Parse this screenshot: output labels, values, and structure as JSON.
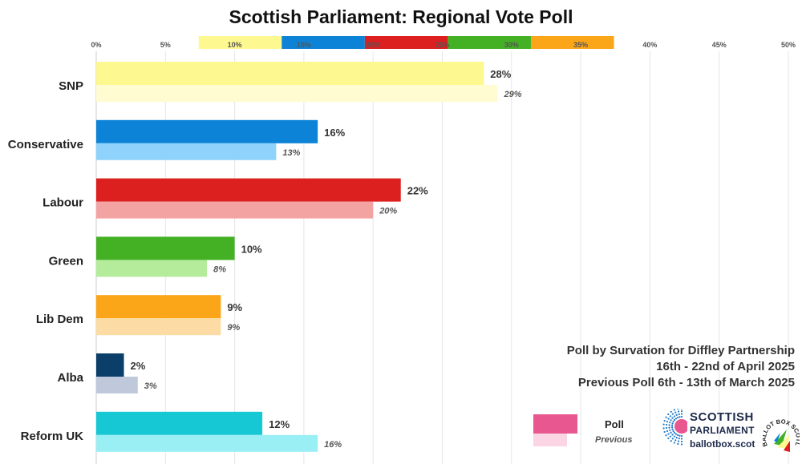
{
  "title": "Scottish Parliament: Regional Vote Poll",
  "source": {
    "line1": "Poll by Survation for Diffley Partnership",
    "line2": "16th - 22nd of April 2025",
    "line3": "Previous Poll 6th - 13th of March 2025"
  },
  "legend": {
    "poll_label": "Poll",
    "previous_label": "Previous",
    "poll_color": "#e8578f",
    "previous_color": "#fbd5e4"
  },
  "logo": {
    "line1": "SCOTTISH",
    "line2": "PARLIAMENT",
    "line3": "ballotbox.scot",
    "badge_text": "BALLOT BOX SCOTLAND"
  },
  "chart_data": {
    "type": "bar",
    "orientation": "horizontal",
    "categories": [
      "SNP",
      "Conservative",
      "Labour",
      "Green",
      "Lib Dem",
      "Alba",
      "Reform UK"
    ],
    "series": [
      {
        "name": "Poll",
        "values": [
          28,
          16,
          22,
          10,
          9,
          2,
          12
        ],
        "labels": [
          "28%",
          "16%",
          "22%",
          "10%",
          "9%",
          "2%",
          "12%"
        ],
        "colors": [
          "#fdf88f",
          "#0c83d6",
          "#dc1f1f",
          "#44b024",
          "#fba519",
          "#0b3f6a",
          "#16c7d4"
        ]
      },
      {
        "name": "Previous",
        "values": [
          29,
          13,
          20,
          8,
          9,
          3,
          16
        ],
        "labels": [
          "29%",
          "13%",
          "20%",
          "8%",
          "9%",
          "3%",
          "16%"
        ],
        "colors": [
          "#fefcd0",
          "#8fd3fc",
          "#f4a3a3",
          "#b4ec9c",
          "#fcdba4",
          "#c0c8db",
          "#9aeff4"
        ]
      }
    ],
    "x_ticks": [
      "0%",
      "5%",
      "10%",
      "15%",
      "20%",
      "25%",
      "30%",
      "35%",
      "40%",
      "45%",
      "50%"
    ],
    "xlim": [
      0,
      50
    ],
    "grid": true,
    "tick_band_colors": [
      "#fdf88f",
      "#0c83d6",
      "#dc1f1f",
      "#44b024",
      "#fba519"
    ],
    "legend_position": "bottom-right"
  }
}
